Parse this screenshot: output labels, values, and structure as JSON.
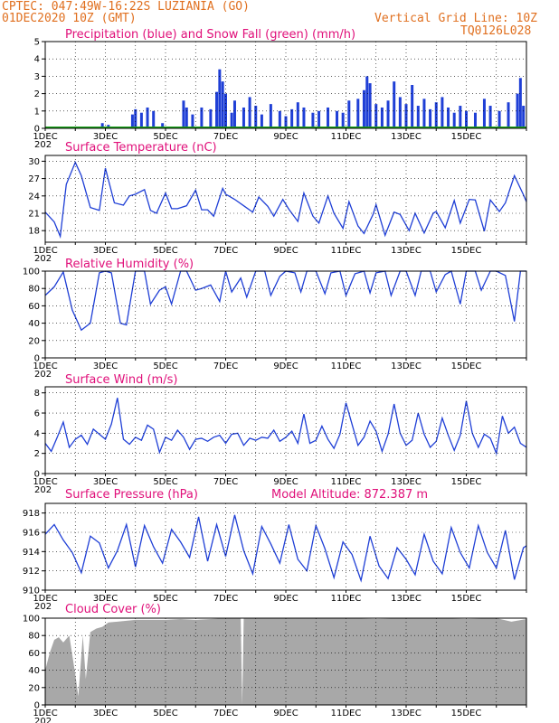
{
  "header": {
    "line1": "CPTEC:   047:49W-16:22S   LUZIANIA (GO)",
    "line2": "01DEC2020 10Z (GMT)",
    "grid_note": "Vertical Grid Line: 10Z",
    "run_id": "TQ0126L028"
  },
  "colors": {
    "series": "#1f3fd6",
    "snow": "#1aa01a",
    "cloud": "#a8a8a8",
    "title": "#e0107a",
    "header": "#e07020"
  },
  "x_labels": [
    "1DEC",
    "3DEC",
    "5DEC",
    "7DEC",
    "9DEC",
    "11DEC",
    "13DEC",
    "15DEC"
  ],
  "year_stub": "202",
  "chart_data": [
    {
      "type": "bar",
      "title": "Precipitation (blue) and Snow Fall (green) (mm/h)",
      "ylim": [
        0,
        5
      ],
      "yticks": [
        0,
        1,
        2,
        3,
        4,
        5
      ],
      "x_range_days": [
        0,
        16
      ],
      "series": [
        {
          "name": "Precipitation",
          "color": "#1f3fd6",
          "points": [
            [
              1.9,
              0.3
            ],
            [
              2.1,
              0.2
            ],
            [
              2.9,
              0.8
            ],
            [
              3.0,
              1.1
            ],
            [
              3.2,
              0.9
            ],
            [
              3.4,
              1.2
            ],
            [
              3.6,
              1.0
            ],
            [
              3.9,
              0.3
            ],
            [
              4.6,
              1.6
            ],
            [
              4.7,
              1.2
            ],
            [
              4.9,
              0.8
            ],
            [
              5.2,
              1.2
            ],
            [
              5.5,
              1.1
            ],
            [
              5.7,
              2.1
            ],
            [
              5.8,
              3.4
            ],
            [
              5.9,
              2.7
            ],
            [
              6.0,
              2.0
            ],
            [
              6.2,
              0.9
            ],
            [
              6.3,
              1.6
            ],
            [
              6.6,
              1.2
            ],
            [
              6.8,
              1.8
            ],
            [
              7.0,
              1.3
            ],
            [
              7.2,
              0.8
            ],
            [
              7.5,
              1.4
            ],
            [
              7.8,
              1.0
            ],
            [
              8.0,
              0.7
            ],
            [
              8.2,
              1.1
            ],
            [
              8.4,
              1.5
            ],
            [
              8.6,
              1.2
            ],
            [
              8.9,
              0.9
            ],
            [
              9.1,
              1.0
            ],
            [
              9.4,
              1.2
            ],
            [
              9.7,
              1.0
            ],
            [
              9.9,
              0.9
            ],
            [
              10.1,
              1.6
            ],
            [
              10.4,
              1.7
            ],
            [
              10.6,
              2.2
            ],
            [
              10.7,
              3.0
            ],
            [
              10.8,
              2.6
            ],
            [
              11.0,
              1.4
            ],
            [
              11.2,
              1.2
            ],
            [
              11.4,
              1.6
            ],
            [
              11.6,
              2.7
            ],
            [
              11.8,
              1.8
            ],
            [
              12.0,
              1.4
            ],
            [
              12.2,
              2.5
            ],
            [
              12.4,
              1.3
            ],
            [
              12.6,
              1.7
            ],
            [
              12.8,
              1.1
            ],
            [
              13.0,
              1.5
            ],
            [
              13.2,
              1.8
            ],
            [
              13.4,
              1.2
            ],
            [
              13.6,
              0.9
            ],
            [
              13.8,
              1.3
            ],
            [
              14.0,
              1.0
            ],
            [
              14.3,
              0.9
            ],
            [
              14.6,
              1.7
            ],
            [
              14.8,
              1.3
            ],
            [
              15.1,
              1.0
            ],
            [
              15.4,
              1.5
            ],
            [
              15.7,
              2.0
            ],
            [
              15.8,
              2.9
            ],
            [
              15.9,
              1.3
            ]
          ]
        },
        {
          "name": "Snow Fall",
          "color": "#1aa01a",
          "points": [
            [
              0,
              0
            ],
            [
              16,
              0
            ]
          ]
        }
      ]
    },
    {
      "type": "line",
      "title": "Surface Temperature (nC)",
      "ylim": [
        16,
        31
      ],
      "yticks": [
        18,
        21,
        24,
        27,
        30
      ],
      "x": [
        0,
        0.3,
        0.5,
        0.7,
        1.0,
        1.2,
        1.5,
        1.8,
        2.0,
        2.3,
        2.6,
        2.8,
        3.0,
        3.3,
        3.5,
        3.7,
        4.0,
        4.2,
        4.4,
        4.7,
        5.0,
        5.2,
        5.4,
        5.6,
        5.9,
        6.0,
        6.3,
        6.6,
        6.9,
        7.1,
        7.4,
        7.6,
        7.9,
        8.1,
        8.4,
        8.6,
        8.9,
        9.1,
        9.4,
        9.6,
        9.9,
        10.1,
        10.4,
        10.6,
        10.9,
        11.0,
        11.3,
        11.6,
        11.8,
        12.1,
        12.3,
        12.6,
        12.9,
        13.0,
        13.3,
        13.6,
        13.8,
        14.1,
        14.3,
        14.6,
        14.8,
        15.1,
        15.3,
        15.6,
        15.9,
        16.0
      ],
      "values": [
        21.2,
        19.5,
        17.0,
        26.0,
        29.8,
        27.5,
        22.0,
        21.5,
        28.8,
        22.8,
        22.4,
        24.0,
        24.3,
        25.1,
        21.5,
        21.0,
        24.5,
        21.8,
        21.8,
        22.3,
        25.0,
        21.6,
        21.6,
        20.5,
        25.3,
        24.3,
        23.4,
        22.3,
        21.2,
        23.8,
        22.2,
        20.5,
        23.4,
        21.7,
        19.6,
        24.5,
        20.5,
        19.3,
        24.0,
        21.0,
        18.4,
        23.0,
        18.8,
        17.5,
        20.8,
        22.5,
        17.2,
        21.2,
        20.8,
        18.0,
        21.0,
        17.6,
        21.0,
        21.3,
        18.5,
        23.2,
        19.3,
        23.4,
        23.3,
        17.9,
        23.3,
        21.3,
        22.8,
        27.5,
        24.2,
        23.0
      ]
    },
    {
      "type": "line",
      "title": "Relative Humidity (%)",
      "ylim": [
        0,
        100
      ],
      "yticks": [
        0,
        20,
        40,
        60,
        80,
        100
      ],
      "x": [
        0,
        0.3,
        0.6,
        0.9,
        1.2,
        1.5,
        1.8,
        2.0,
        2.2,
        2.5,
        2.7,
        3.0,
        3.3,
        3.5,
        3.8,
        4.0,
        4.2,
        4.5,
        4.7,
        5.0,
        5.2,
        5.5,
        5.8,
        6.0,
        6.2,
        6.5,
        6.7,
        7.0,
        7.3,
        7.5,
        7.8,
        8.0,
        8.3,
        8.5,
        8.7,
        9.0,
        9.3,
        9.5,
        9.8,
        10.0,
        10.3,
        10.6,
        10.8,
        11.0,
        11.3,
        11.5,
        11.8,
        12.0,
        12.3,
        12.5,
        12.8,
        13.0,
        13.3,
        13.5,
        13.8,
        14.0,
        14.3,
        14.5,
        14.8,
        15.0,
        15.3,
        15.6,
        15.8,
        16.0
      ],
      "values": [
        72,
        82,
        99,
        55,
        32,
        40,
        98,
        100,
        98,
        40,
        38,
        100,
        100,
        62,
        78,
        82,
        62,
        100,
        100,
        78,
        80,
        84,
        65,
        100,
        76,
        92,
        70,
        100,
        100,
        72,
        94,
        100,
        98,
        76,
        100,
        100,
        74,
        98,
        100,
        72,
        97,
        100,
        75,
        98,
        100,
        72,
        100,
        100,
        72,
        100,
        100,
        76,
        96,
        100,
        62,
        100,
        100,
        78,
        100,
        100,
        95,
        42,
        100,
        100
      ]
    },
    {
      "type": "line",
      "title": "Surface Wind (m/s)",
      "ylim": [
        0,
        8.6
      ],
      "yticks": [
        0,
        2,
        4,
        6,
        8
      ],
      "x": [
        0,
        0.2,
        0.4,
        0.6,
        0.8,
        1.0,
        1.2,
        1.4,
        1.6,
        1.8,
        2.0,
        2.2,
        2.4,
        2.6,
        2.8,
        3.0,
        3.2,
        3.4,
        3.6,
        3.8,
        4.0,
        4.2,
        4.4,
        4.6,
        4.8,
        5.0,
        5.2,
        5.4,
        5.6,
        5.8,
        6.0,
        6.2,
        6.4,
        6.6,
        6.8,
        7.0,
        7.2,
        7.4,
        7.6,
        7.8,
        8.0,
        8.2,
        8.4,
        8.6,
        8.8,
        9.0,
        9.2,
        9.4,
        9.6,
        9.8,
        10.0,
        10.2,
        10.4,
        10.6,
        10.8,
        11.0,
        11.2,
        11.4,
        11.6,
        11.8,
        12.0,
        12.2,
        12.4,
        12.6,
        12.8,
        13.0,
        13.2,
        13.4,
        13.6,
        13.8,
        14.0,
        14.2,
        14.4,
        14.6,
        14.8,
        15.0,
        15.2,
        15.4,
        15.6,
        15.8,
        16.0
      ],
      "values": [
        3.0,
        2.2,
        3.6,
        5.1,
        2.6,
        3.4,
        3.8,
        2.9,
        4.4,
        3.9,
        3.4,
        4.9,
        7.5,
        3.4,
        2.9,
        3.6,
        3.3,
        4.8,
        4.4,
        2.1,
        3.6,
        3.3,
        4.3,
        3.6,
        2.4,
        3.4,
        3.5,
        3.2,
        3.6,
        3.8,
        3.0,
        3.9,
        4.0,
        2.8,
        3.5,
        3.3,
        3.6,
        3.5,
        4.3,
        3.2,
        3.6,
        4.2,
        3.0,
        5.9,
        3.0,
        3.3,
        4.7,
        3.4,
        2.5,
        3.9,
        7.0,
        4.9,
        2.8,
        3.6,
        5.2,
        4.2,
        2.2,
        3.9,
        6.9,
        4.0,
        2.8,
        3.3,
        6.0,
        3.9,
        2.6,
        3.2,
        5.5,
        3.8,
        2.3,
        3.8,
        7.2,
        4.0,
        2.6,
        3.9,
        3.5,
        2.0,
        5.7,
        4.0,
        4.6,
        3.0,
        2.6
      ]
    },
    {
      "type": "line",
      "title": "Surface Pressure (hPa)",
      "annotation": "Model Altitude: 872.387 m",
      "ylim": [
        910,
        919
      ],
      "yticks": [
        910,
        912,
        914,
        916,
        918
      ],
      "x": [
        0,
        0.3,
        0.6,
        0.9,
        1.2,
        1.5,
        1.8,
        2.1,
        2.4,
        2.7,
        3.0,
        3.3,
        3.6,
        3.9,
        4.2,
        4.5,
        4.8,
        5.1,
        5.4,
        5.7,
        6.0,
        6.3,
        6.6,
        6.9,
        7.2,
        7.5,
        7.8,
        8.1,
        8.4,
        8.7,
        9.0,
        9.3,
        9.6,
        9.9,
        10.2,
        10.5,
        10.8,
        11.1,
        11.4,
        11.7,
        12.0,
        12.3,
        12.6,
        12.9,
        13.2,
        13.5,
        13.8,
        14.1,
        14.4,
        14.7,
        15.0,
        15.3,
        15.6,
        15.9,
        16.0
      ],
      "values": [
        915.8,
        916.8,
        915.2,
        913.9,
        911.8,
        915.6,
        914.9,
        912.3,
        914.1,
        916.8,
        912.4,
        916.7,
        914.5,
        912.8,
        916.3,
        915.0,
        913.4,
        917.6,
        913.0,
        916.8,
        913.5,
        917.8,
        914.1,
        911.7,
        916.6,
        914.8,
        912.8,
        916.8,
        913.2,
        912.0,
        916.7,
        914.3,
        911.3,
        915.0,
        913.7,
        911.0,
        915.6,
        912.5,
        911.2,
        914.4,
        913.2,
        911.6,
        915.8,
        913.0,
        911.7,
        916.5,
        913.9,
        912.3,
        916.7,
        913.9,
        912.3,
        916.2,
        911.1,
        914.4,
        914.6
      ]
    },
    {
      "type": "area",
      "title": "Cloud Cover (%)",
      "ylim": [
        0,
        100
      ],
      "yticks": [
        0,
        20,
        40,
        60,
        80,
        100
      ],
      "x": [
        0,
        0.15,
        0.3,
        0.45,
        0.6,
        0.8,
        1.0,
        1.1,
        1.25,
        1.35,
        1.5,
        1.7,
        1.9,
        2.1,
        2.4,
        2.7,
        3.0,
        3.5,
        4.0,
        4.5,
        5.0,
        5.5,
        6.0,
        6.5,
        6.55,
        6.6,
        7.0,
        8.0,
        9.0,
        10.0,
        11.0,
        12.0,
        13.0,
        14.0,
        15.0,
        15.5,
        16.0
      ],
      "values": [
        40,
        60,
        75,
        78,
        72,
        80,
        35,
        10,
        80,
        30,
        84,
        88,
        90,
        95,
        96,
        97,
        98,
        98,
        98,
        99,
        98,
        99,
        100,
        100,
        0,
        100,
        100,
        100,
        100,
        100,
        99,
        100,
        100,
        99,
        100,
        96,
        99
      ]
    }
  ]
}
